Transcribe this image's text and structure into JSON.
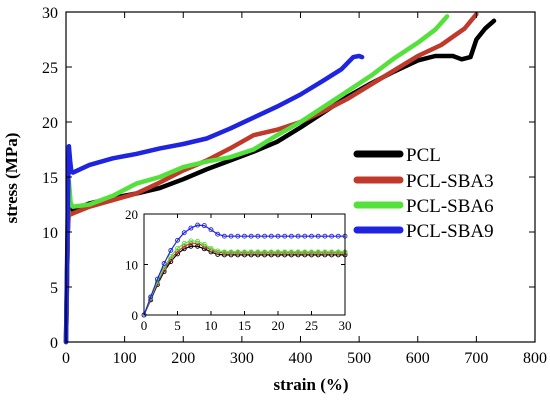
{
  "chart_data": [
    {
      "type": "line",
      "title": "",
      "xlabel": "strain (%)",
      "ylabel": "stress (MPa)",
      "xlim": [
        0,
        800
      ],
      "ylim": [
        0,
        30
      ],
      "xticks": [
        "0",
        "100",
        "200",
        "300",
        "400",
        "500",
        "600",
        "700",
        "800"
      ],
      "yticks": [
        "0",
        "5",
        "10",
        "15",
        "20",
        "25",
        "30"
      ],
      "legend_position": "right",
      "series": [
        {
          "name": "PCL",
          "color": "#000000",
          "x": [
            0,
            3,
            5,
            8,
            12,
            40,
            80,
            120,
            160,
            200,
            240,
            280,
            320,
            360,
            400,
            440,
            480,
            520,
            560,
            600,
            630,
            660,
            675,
            690,
            700,
            715,
            730
          ],
          "y": [
            0,
            10,
            12.5,
            12.3,
            12.0,
            12.6,
            13.1,
            13.5,
            14.0,
            14.8,
            15.7,
            16.5,
            17.3,
            18.2,
            19.5,
            20.9,
            22.3,
            23.5,
            24.6,
            25.6,
            26.0,
            26.0,
            25.7,
            25.9,
            27.5,
            28.5,
            29.2
          ]
        },
        {
          "name": "PCL-SBA3",
          "color": "#c0392b",
          "x": [
            0,
            3,
            5,
            8,
            12,
            40,
            80,
            120,
            160,
            200,
            240,
            280,
            320,
            360,
            400,
            440,
            480,
            520,
            560,
            600,
            640,
            680,
            700
          ],
          "y": [
            0,
            10,
            11.8,
            11.6,
            11.7,
            12.3,
            12.9,
            13.5,
            14.5,
            15.6,
            16.5,
            17.6,
            18.8,
            19.3,
            20.0,
            21.0,
            22.1,
            23.4,
            24.7,
            26.0,
            27.0,
            28.5,
            29.8
          ]
        },
        {
          "name": "PCL-SBA6",
          "color": "#55e13b",
          "x": [
            0,
            3,
            5,
            8,
            12,
            40,
            80,
            120,
            160,
            200,
            240,
            280,
            320,
            360,
            400,
            440,
            480,
            520,
            560,
            600,
            630,
            650
          ],
          "y": [
            0,
            11,
            14.6,
            12.6,
            12.3,
            12.5,
            13.3,
            14.4,
            15.0,
            15.9,
            16.4,
            16.8,
            17.5,
            18.8,
            20.0,
            21.4,
            22.8,
            24.2,
            25.8,
            27.2,
            28.4,
            29.6
          ]
        },
        {
          "name": "PCL-SBA9",
          "color": "#1f24e0",
          "x": [
            0,
            3,
            5,
            7,
            9,
            12,
            40,
            80,
            120,
            160,
            200,
            240,
            280,
            320,
            360,
            400,
            440,
            470,
            490,
            500,
            505
          ],
          "y": [
            0,
            12,
            17.8,
            16.5,
            15.5,
            15.4,
            16.1,
            16.7,
            17.1,
            17.6,
            18.0,
            18.5,
            19.4,
            20.4,
            21.4,
            22.5,
            23.8,
            24.8,
            25.9,
            26.0,
            25.9
          ]
        }
      ]
    },
    {
      "type": "line",
      "title": "",
      "xlabel": "",
      "ylabel": "",
      "xlim": [
        0,
        30
      ],
      "ylim": [
        0,
        20
      ],
      "xticks": [
        "0",
        "5",
        "10",
        "15",
        "20",
        "25",
        "30"
      ],
      "yticks": [
        "0",
        "10",
        "20"
      ],
      "series": [
        {
          "name": "PCL",
          "color": "#000000",
          "x": [
            0,
            1,
            2,
            3,
            4,
            5,
            6,
            7,
            8,
            9,
            10,
            11,
            12,
            13,
            14,
            15,
            16,
            17,
            18,
            19,
            20,
            21,
            22,
            23,
            24,
            25,
            26,
            27,
            28,
            29,
            30
          ],
          "y": [
            0,
            3,
            6,
            8.6,
            10.6,
            12.1,
            13.1,
            13.6,
            13.6,
            13.1,
            12.5,
            12.0,
            11.9,
            11.9,
            11.9,
            11.9,
            11.9,
            11.9,
            11.9,
            11.9,
            11.9,
            11.9,
            11.9,
            11.9,
            11.9,
            11.9,
            11.9,
            11.9,
            11.9,
            11.9,
            11.9
          ]
        },
        {
          "name": "PCL-SBA3",
          "color": "#c0392b",
          "x": [
            0,
            1,
            2,
            3,
            4,
            5,
            6,
            7,
            8,
            9,
            10,
            11,
            12,
            13,
            14,
            15,
            16,
            17,
            18,
            19,
            20,
            21,
            22,
            23,
            24,
            25,
            26,
            27,
            28,
            29,
            30
          ],
          "y": [
            0,
            3.2,
            6.3,
            9.0,
            11.1,
            12.6,
            13.6,
            14.2,
            14.2,
            13.6,
            12.9,
            12.4,
            12.3,
            12.3,
            12.3,
            12.3,
            12.3,
            12.3,
            12.3,
            12.3,
            12.3,
            12.3,
            12.3,
            12.3,
            12.3,
            12.3,
            12.3,
            12.3,
            12.3,
            12.3,
            12.3
          ]
        },
        {
          "name": "PCL-SBA6",
          "color": "#55e13b",
          "x": [
            0,
            1,
            2,
            3,
            4,
            5,
            6,
            7,
            8,
            9,
            10,
            11,
            12,
            13,
            14,
            15,
            16,
            17,
            18,
            19,
            20,
            21,
            22,
            23,
            24,
            25,
            26,
            27,
            28,
            29,
            30
          ],
          "y": [
            0,
            3.4,
            6.6,
            9.4,
            11.6,
            13.2,
            14.2,
            14.7,
            14.6,
            14.0,
            13.2,
            12.7,
            12.5,
            12.5,
            12.5,
            12.5,
            12.5,
            12.5,
            12.5,
            12.5,
            12.5,
            12.5,
            12.5,
            12.5,
            12.5,
            12.5,
            12.5,
            12.5,
            12.5,
            12.5,
            12.5
          ]
        },
        {
          "name": "PCL-SBA9",
          "color": "#1f24e0",
          "x": [
            0,
            1,
            2,
            3,
            4,
            5,
            6,
            7,
            8,
            9,
            10,
            11,
            12,
            13,
            14,
            15,
            16,
            17,
            18,
            19,
            20,
            21,
            22,
            23,
            24,
            25,
            26,
            27,
            28,
            29,
            30
          ],
          "y": [
            0,
            3.6,
            7.1,
            10.2,
            12.8,
            14.8,
            16.3,
            17.2,
            17.8,
            17.7,
            16.9,
            16.0,
            15.6,
            15.6,
            15.6,
            15.6,
            15.6,
            15.6,
            15.6,
            15.6,
            15.6,
            15.6,
            15.6,
            15.6,
            15.6,
            15.6,
            15.6,
            15.6,
            15.6,
            15.6,
            15.6
          ]
        }
      ]
    }
  ]
}
